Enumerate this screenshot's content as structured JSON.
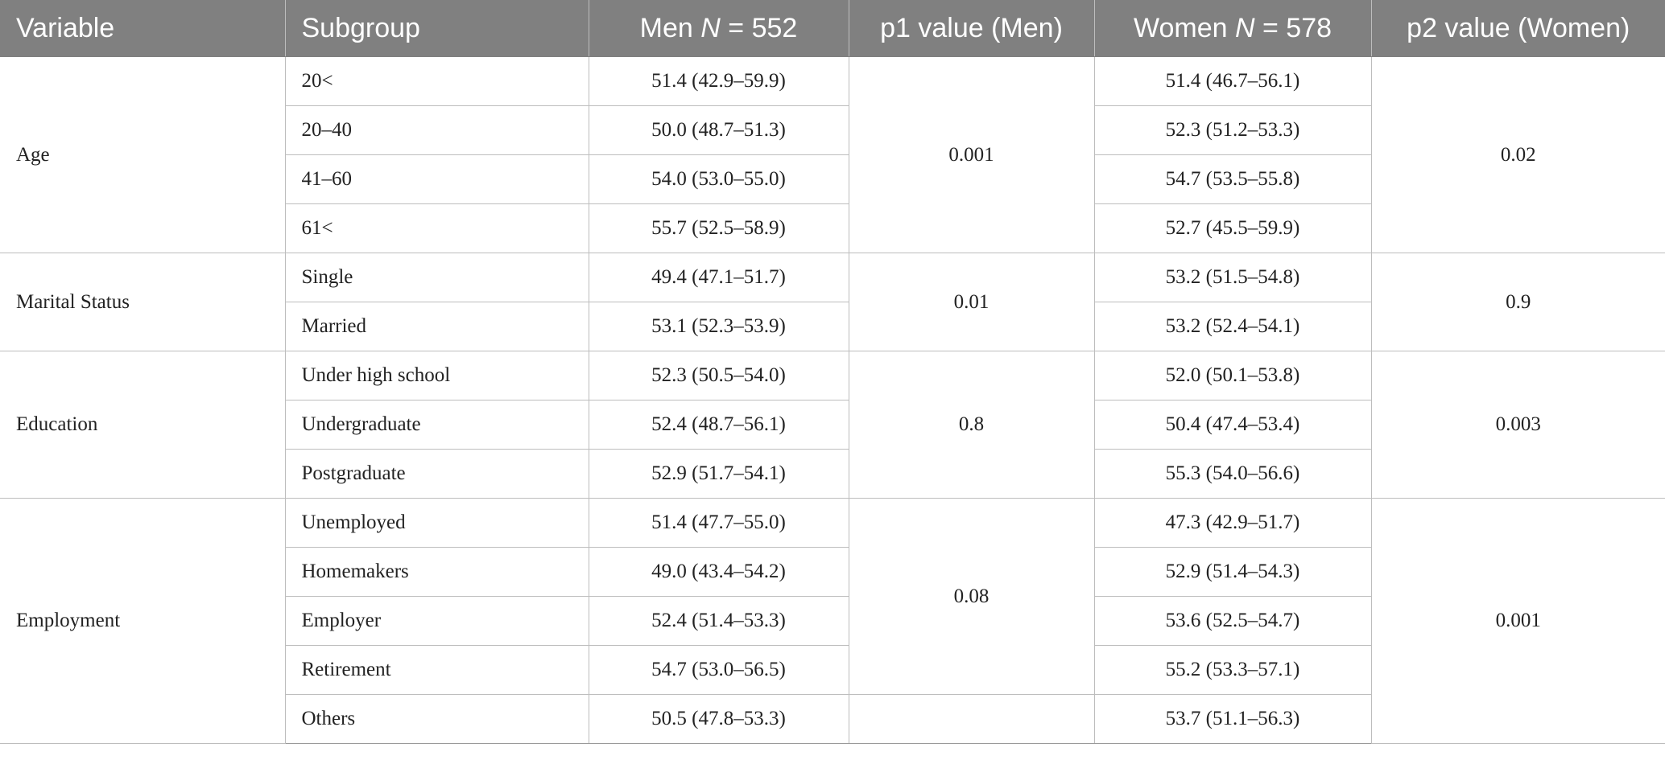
{
  "header": {
    "variable": "Variable",
    "subgroup": "Subgroup",
    "men_prefix": "Men ",
    "men_n": "N",
    "men_suffix": " = 552",
    "p1": "p1 value (Men)",
    "women_prefix": "Women ",
    "women_n": "N",
    "women_suffix": " = 578",
    "p2": "p2 value (Women)"
  },
  "groups": [
    {
      "variable": "Age",
      "p1": "0.001",
      "p2": "0.02",
      "rows": [
        {
          "subgroup": "20<",
          "men": "51.4 (42.9–59.9)",
          "women": "51.4 (46.7–56.1)"
        },
        {
          "subgroup": "20–40",
          "men": "50.0 (48.7–51.3)",
          "women": "52.3 (51.2–53.3)"
        },
        {
          "subgroup": "41–60",
          "men": "54.0 (53.0–55.0)",
          "women": "54.7 (53.5–55.8)"
        },
        {
          "subgroup": "61<",
          "men": "55.7 (52.5–58.9)",
          "women": "52.7 (45.5–59.9)"
        }
      ]
    },
    {
      "variable": "Marital Status",
      "p1": "0.01",
      "p2": "0.9",
      "rows": [
        {
          "subgroup": "Single",
          "men": "49.4 (47.1–51.7)",
          "women": "53.2 (51.5–54.8)"
        },
        {
          "subgroup": "Married",
          "men": "53.1 (52.3–53.9)",
          "women": "53.2 (52.4–54.1)"
        }
      ]
    },
    {
      "variable": "Education",
      "p1": "0.8",
      "p2": "0.003",
      "rows": [
        {
          "subgroup": "Under high school",
          "men": "52.3 (50.5–54.0)",
          "women": "52.0 (50.1–53.8)"
        },
        {
          "subgroup": "Undergraduate",
          "men": "52.4 (48.7–56.1)",
          "women": "50.4 (47.4–53.4)"
        },
        {
          "subgroup": "Postgraduate",
          "men": "52.9 (51.7–54.1)",
          "women": "55.3 (54.0–56.6)"
        }
      ]
    },
    {
      "variable": "Employment",
      "p1": "0.08",
      "p2": "0.001",
      "rows": [
        {
          "subgroup": "Unemployed",
          "men": "51.4 (47.7–55.0)",
          "women": "47.3 (42.9–51.7)"
        },
        {
          "subgroup": "Homemakers",
          "men": "49.0 (43.4–54.2)",
          "women": "52.9 (51.4–54.3)"
        },
        {
          "subgroup": "Employer",
          "men": "52.4 (51.4–53.3)",
          "women": "53.6 (52.5–54.7)"
        },
        {
          "subgroup": "Retirement",
          "men": "54.7 (53.0–56.5)",
          "women": "55.2 (53.3–57.1)"
        },
        {
          "subgroup": "Others",
          "men": "50.5 (47.8–53.3)",
          "women": "53.7 (51.1–56.3)"
        }
      ]
    }
  ]
}
